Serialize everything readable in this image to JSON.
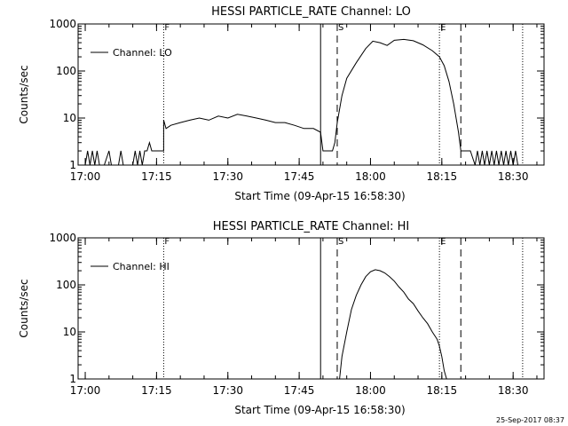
{
  "footer": {
    "timestamp": "25-Sep-2017 08:37"
  },
  "chart_data": [
    {
      "type": "line",
      "title": "HESSI PARTICLE_RATE Channel: LO",
      "xlabel": "Start Time (09-Apr-15 16:58:30)",
      "ylabel": "Counts/sec",
      "xlim": [
        "16:58:30",
        "18:36:30"
      ],
      "ylim": [
        1,
        1000
      ],
      "yscale": "log",
      "grid": false,
      "legend_position": "top-left",
      "x_ticks": [
        "17:00",
        "17:15",
        "17:30",
        "17:45",
        "18:00",
        "18:15",
        "18:30"
      ],
      "y_ticks": [
        "1",
        "10",
        "100",
        "1000"
      ],
      "markers": [
        {
          "time": "17:16:30",
          "label": "F",
          "style": "dotted"
        },
        {
          "time": "17:49:30",
          "label": "",
          "style": "solid"
        },
        {
          "time": "17:53:00",
          "label": "S",
          "style": "dashed"
        },
        {
          "time": "18:14:30",
          "label": "E",
          "style": "dotted"
        },
        {
          "time": "18:19:00",
          "label": "",
          "style": "dashed"
        },
        {
          "time": "18:32:00",
          "label": "",
          "style": "dotted"
        }
      ],
      "series": [
        {
          "name": "Channel: LO",
          "points": [
            [
              "16:58:30",
              1
            ],
            [
              "17:00:00",
              1
            ],
            [
              "17:00:30",
              2
            ],
            [
              "17:01:00",
              1
            ],
            [
              "17:01:30",
              2
            ],
            [
              "17:02:00",
              1
            ],
            [
              "17:02:30",
              2
            ],
            [
              "17:03:00",
              1
            ],
            [
              "17:04:00",
              1
            ],
            [
              "17:05:00",
              2
            ],
            [
              "17:05:30",
              1
            ],
            [
              "17:07:00",
              1
            ],
            [
              "17:07:30",
              2
            ],
            [
              "17:08:00",
              1
            ],
            [
              "17:10:00",
              1
            ],
            [
              "17:10:30",
              2
            ],
            [
              "17:11:00",
              1
            ],
            [
              "17:11:30",
              2
            ],
            [
              "17:12:00",
              1
            ],
            [
              "17:12:30",
              2
            ],
            [
              "17:13:00",
              2
            ],
            [
              "17:13:30",
              3
            ],
            [
              "17:14:00",
              2
            ],
            [
              "17:16:30",
              2
            ],
            [
              "17:16:30",
              9
            ],
            [
              "17:17:00",
              6
            ],
            [
              "17:18:00",
              7
            ],
            [
              "17:20:00",
              8
            ],
            [
              "17:22:00",
              9
            ],
            [
              "17:24:00",
              10
            ],
            [
              "17:26:00",
              9
            ],
            [
              "17:28:00",
              11
            ],
            [
              "17:30:00",
              10
            ],
            [
              "17:32:00",
              12
            ],
            [
              "17:34:00",
              11
            ],
            [
              "17:36:00",
              10
            ],
            [
              "17:38:00",
              9
            ],
            [
              "17:40:00",
              8
            ],
            [
              "17:42:00",
              8
            ],
            [
              "17:44:00",
              7
            ],
            [
              "17:46:00",
              6
            ],
            [
              "17:48:00",
              6
            ],
            [
              "17:49:30",
              5
            ],
            [
              "17:50:00",
              2
            ],
            [
              "17:52:00",
              2
            ],
            [
              "17:52:30",
              3
            ],
            [
              "17:53:00",
              8
            ],
            [
              "17:54:00",
              30
            ],
            [
              "17:55:00",
              70
            ],
            [
              "17:57:00",
              150
            ],
            [
              "17:59:00",
              300
            ],
            [
              "18:00:30",
              430
            ],
            [
              "18:02:00",
              400
            ],
            [
              "18:03:30",
              350
            ],
            [
              "18:05:00",
              450
            ],
            [
              "18:07:00",
              470
            ],
            [
              "18:09:00",
              440
            ],
            [
              "18:11:00",
              360
            ],
            [
              "18:13:00",
              270
            ],
            [
              "18:14:30",
              200
            ],
            [
              "18:15:30",
              130
            ],
            [
              "18:16:30",
              60
            ],
            [
              "18:17:30",
              20
            ],
            [
              "18:18:30",
              5
            ],
            [
              "18:19:00",
              2
            ],
            [
              "18:20:00",
              2
            ],
            [
              "18:21:00",
              2
            ],
            [
              "18:22:00",
              1
            ],
            [
              "18:22:30",
              2
            ],
            [
              "18:23:00",
              1
            ],
            [
              "18:23:30",
              2
            ],
            [
              "18:24:00",
              1
            ],
            [
              "18:24:30",
              2
            ],
            [
              "18:25:00",
              1
            ],
            [
              "18:25:30",
              2
            ],
            [
              "18:26:00",
              1
            ],
            [
              "18:26:30",
              2
            ],
            [
              "18:27:00",
              1
            ],
            [
              "18:27:30",
              2
            ],
            [
              "18:28:00",
              1
            ],
            [
              "18:28:30",
              2
            ],
            [
              "18:29:00",
              1
            ],
            [
              "18:29:30",
              2
            ],
            [
              "18:30:00",
              1
            ],
            [
              "18:30:30",
              2
            ],
            [
              "18:31:00",
              1
            ]
          ]
        }
      ]
    },
    {
      "type": "line",
      "title": "HESSI PARTICLE_RATE Channel: HI",
      "xlabel": "Start Time (09-Apr-15 16:58:30)",
      "ylabel": "Counts/sec",
      "xlim": [
        "16:58:30",
        "18:36:30"
      ],
      "ylim": [
        1,
        1000
      ],
      "yscale": "log",
      "grid": false,
      "legend_position": "top-left",
      "x_ticks": [
        "17:00",
        "17:15",
        "17:30",
        "17:45",
        "18:00",
        "18:15",
        "18:30"
      ],
      "y_ticks": [
        "1",
        "10",
        "100",
        "1000"
      ],
      "markers": [
        {
          "time": "17:16:30",
          "label": "F",
          "style": "dotted"
        },
        {
          "time": "17:49:30",
          "label": "",
          "style": "solid"
        },
        {
          "time": "17:53:00",
          "label": "S",
          "style": "dashed"
        },
        {
          "time": "18:14:30",
          "label": "E",
          "style": "dotted"
        },
        {
          "time": "18:19:00",
          "label": "",
          "style": "dashed"
        },
        {
          "time": "18:32:00",
          "label": "",
          "style": "dotted"
        }
      ],
      "series": [
        {
          "name": "Channel: HI",
          "points": [
            [
              "17:53:30",
              1
            ],
            [
              "17:54:00",
              3
            ],
            [
              "17:55:00",
              10
            ],
            [
              "17:56:00",
              30
            ],
            [
              "17:57:00",
              60
            ],
            [
              "17:58:00",
              100
            ],
            [
              "17:59:00",
              150
            ],
            [
              "18:00:00",
              190
            ],
            [
              "18:01:00",
              210
            ],
            [
              "18:02:00",
              200
            ],
            [
              "18:03:00",
              180
            ],
            [
              "18:04:00",
              150
            ],
            [
              "18:05:00",
              120
            ],
            [
              "18:06:00",
              90
            ],
            [
              "18:07:00",
              70
            ],
            [
              "18:08:00",
              50
            ],
            [
              "18:09:00",
              40
            ],
            [
              "18:10:00",
              28
            ],
            [
              "18:11:00",
              20
            ],
            [
              "18:12:00",
              15
            ],
            [
              "18:13:00",
              10
            ],
            [
              "18:14:00",
              7
            ],
            [
              "18:14:30",
              5
            ],
            [
              "18:15:00",
              3
            ],
            [
              "18:15:30",
              1.5
            ],
            [
              "18:16:00",
              1
            ]
          ]
        }
      ]
    }
  ]
}
